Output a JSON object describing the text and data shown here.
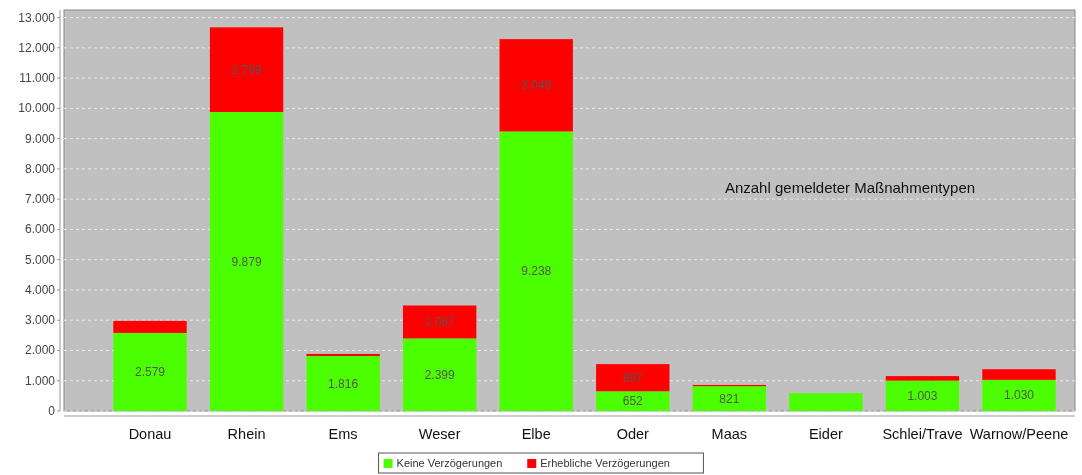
{
  "chart_data": {
    "type": "bar",
    "stacked": true,
    "categories": [
      "Donau",
      "Rhein",
      "Ems",
      "Weser",
      "Elbe",
      "Oder",
      "Maas",
      "Eider",
      "Schlei/Trave",
      "Warnow/Peene"
    ],
    "series": [
      {
        "name": "Keine Verzögerungen",
        "color": "#4cff00",
        "values": [
          2579,
          9879,
          1816,
          2399,
          9238,
          652,
          821,
          590,
          1003,
          1030
        ],
        "value_labels": [
          "2.579",
          "9.879",
          "1.816",
          "2.399",
          "9.238",
          "652",
          "821",
          null,
          "1.003",
          "1.030"
        ]
      },
      {
        "name": "Erhebliche Verzögerungen",
        "color": "#ff0000",
        "values": [
          400,
          2798,
          70,
          1087,
          3049,
          897,
          40,
          null,
          150,
          350
        ],
        "value_labels": [
          null,
          "2.798",
          null,
          "1.087",
          "3.049",
          "897",
          null,
          null,
          null,
          null
        ]
      }
    ],
    "ylim": [
      0,
      13250
    ],
    "yticks": [
      0,
      {
        "value": 1000,
        "label": "1.000"
      },
      {
        "value": 2000,
        "label": "2.000"
      },
      {
        "value": 3000,
        "label": "3.000"
      },
      {
        "value": 4000,
        "label": "4.000"
      },
      {
        "value": 5000,
        "label": "5.000"
      },
      {
        "value": 6000,
        "label": "6.000"
      },
      {
        "value": 7000,
        "label": "7.000"
      },
      {
        "value": 8000,
        "label": "8.000"
      },
      {
        "value": 9000,
        "label": "9.000"
      },
      {
        "value": 10000,
        "label": "10.000"
      },
      {
        "value": 11000,
        "label": "11.000"
      },
      {
        "value": 12000,
        "label": "12.000"
      },
      {
        "value": 13000,
        "label": "13.000"
      }
    ],
    "grid": "y",
    "legend": "bottom",
    "annotations": [
      "Anzahl gemeldeter Maßnahmentypen"
    ]
  }
}
